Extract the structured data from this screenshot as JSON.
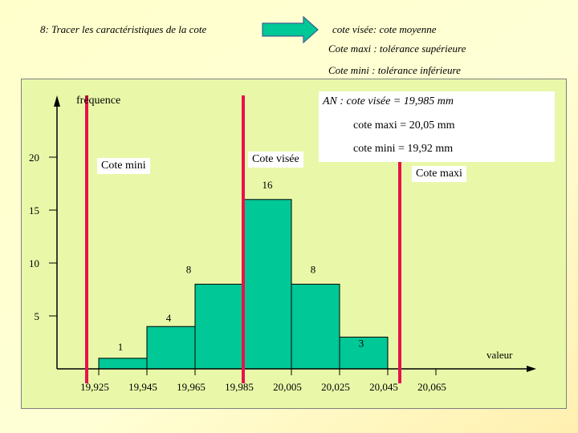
{
  "header": {
    "title": "8: Tracer les caractéristiques de la cote",
    "right_lines": [
      "cote visée:  cote moyenne",
      "Cote maxi : tolérance supérieure",
      "Cote mini : tolérance inférieure"
    ]
  },
  "chart": {
    "y_axis_label": "fréquence",
    "x_axis_label": "valeur",
    "y_ticks": [
      "5",
      "10",
      "15",
      "20"
    ],
    "x_ticks": [
      "19,925",
      "19,945",
      "19,965",
      "19,985",
      "20,005",
      "20,025",
      "20,045",
      "20,065"
    ],
    "bars": [
      {
        "from": 19.925,
        "to": 19.945,
        "value": 1,
        "label": "1"
      },
      {
        "from": 19.945,
        "to": 19.965,
        "value": 4,
        "label": "4"
      },
      {
        "from": 19.965,
        "to": 19.985,
        "value": 8,
        "label": "8"
      },
      {
        "from": 19.985,
        "to": 20.005,
        "value": 16,
        "label": "16"
      },
      {
        "from": 20.005,
        "to": 20.025,
        "value": 8,
        "label": "8"
      },
      {
        "from": 20.025,
        "to": 20.045,
        "value": 3,
        "label": "3"
      }
    ],
    "bar_color": "#00c896",
    "limit_line_color": "#e8124b",
    "limits": [
      {
        "label": "Cote mini",
        "value": 19.92
      },
      {
        "label": "Cote visée",
        "value": 19.985
      },
      {
        "label": "Cote maxi",
        "value": 20.05
      }
    ]
  },
  "annotation": {
    "lines": [
      "AN : cote visée = 19,985 mm",
      "cote maxi = 20,05 mm",
      "cote mini = 19,92 mm"
    ]
  }
}
